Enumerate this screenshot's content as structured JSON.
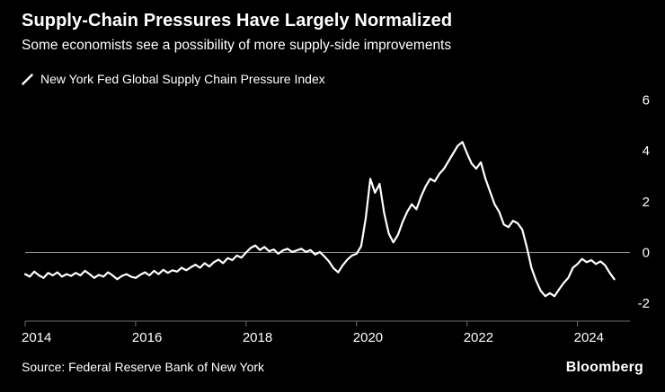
{
  "header": {
    "title": "Supply-Chain Pressures Have Largely Normalized",
    "subtitle": "Some economists see a possibility of more supply-side improvements"
  },
  "legend": {
    "label": "New York Fed Global Supply Chain Pressure Index"
  },
  "footer": {
    "source": "Source: Federal Reserve Bank of New York",
    "brand": "Bloomberg"
  },
  "colors": {
    "background": "#000000",
    "line": "#ffffff",
    "zero_line": "#8c8c8c",
    "axis": "#6e6e6e",
    "text": "#ffffff"
  },
  "chart_data": {
    "type": "line",
    "title": "New York Fed Global Supply Chain Pressure Index",
    "x_unit": "month",
    "x_start": 2014.0,
    "x_ticks": [
      2014,
      2016,
      2018,
      2020,
      2022,
      2024
    ],
    "y_ticks": [
      6,
      4,
      2,
      0,
      -2
    ],
    "xlim": [
      2014,
      2024.95
    ],
    "ylim": [
      -2.7,
      6.3
    ],
    "grid": false,
    "zero_line": true,
    "y_axis_side": "right",
    "legend_position": "top-left",
    "series": [
      {
        "name": "New York Fed Global Supply Chain Pressure Index",
        "values": [
          -0.85,
          -0.95,
          -0.75,
          -0.9,
          -1.0,
          -0.8,
          -0.9,
          -0.78,
          -0.95,
          -0.85,
          -0.92,
          -0.8,
          -0.9,
          -0.72,
          -0.85,
          -1.0,
          -0.88,
          -0.95,
          -0.78,
          -0.9,
          -1.05,
          -0.92,
          -0.85,
          -0.95,
          -1.0,
          -0.88,
          -0.78,
          -0.9,
          -0.72,
          -0.85,
          -0.68,
          -0.8,
          -0.7,
          -0.75,
          -0.6,
          -0.7,
          -0.58,
          -0.48,
          -0.6,
          -0.42,
          -0.55,
          -0.38,
          -0.28,
          -0.42,
          -0.22,
          -0.3,
          -0.12,
          -0.2,
          0.0,
          0.18,
          0.28,
          0.1,
          0.22,
          0.05,
          0.12,
          -0.05,
          0.08,
          0.15,
          0.02,
          0.08,
          0.15,
          0.02,
          0.1,
          -0.08,
          0.02,
          -0.15,
          -0.35,
          -0.62,
          -0.78,
          -0.5,
          -0.28,
          -0.12,
          -0.05,
          0.25,
          1.35,
          2.9,
          2.35,
          2.7,
          1.55,
          0.75,
          0.4,
          0.7,
          1.2,
          1.6,
          1.9,
          1.7,
          2.2,
          2.6,
          2.9,
          2.8,
          3.1,
          3.3,
          3.6,
          3.9,
          4.2,
          4.35,
          3.9,
          3.5,
          3.3,
          3.55,
          2.9,
          2.4,
          1.9,
          1.6,
          1.1,
          1.0,
          1.25,
          1.15,
          0.9,
          0.2,
          -0.6,
          -1.1,
          -1.5,
          -1.72,
          -1.6,
          -1.72,
          -1.45,
          -1.2,
          -1.0,
          -0.6,
          -0.45,
          -0.25,
          -0.38,
          -0.3,
          -0.45,
          -0.35,
          -0.5,
          -0.8,
          -1.05
        ]
      }
    ]
  }
}
